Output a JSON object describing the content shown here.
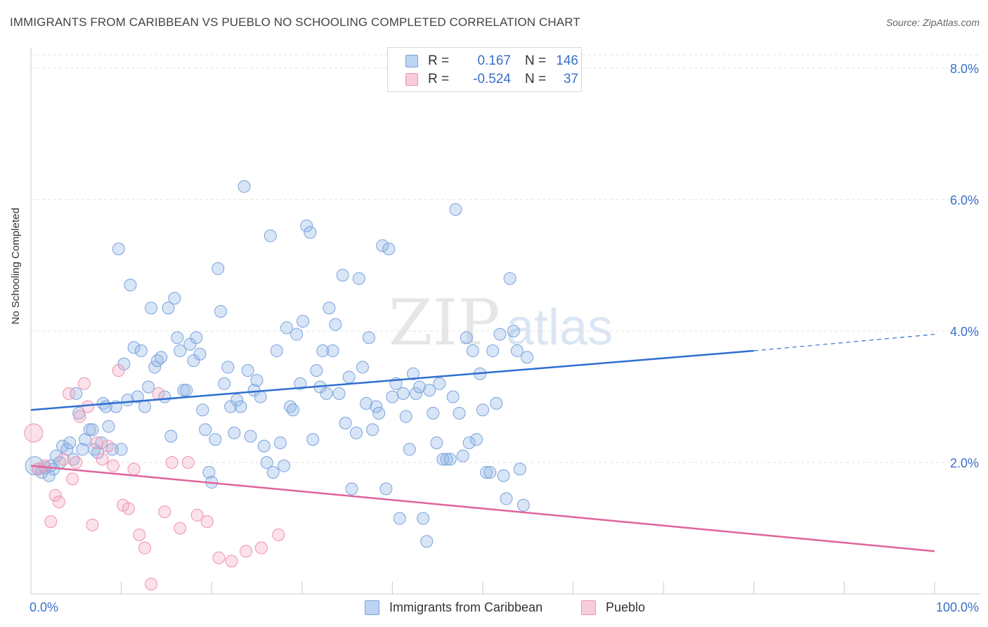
{
  "chart_data": {
    "type": "scatter",
    "title": "IMMIGRANTS FROM CARIBBEAN VS PUEBLO NO SCHOOLING COMPLETED CORRELATION CHART",
    "source": "Source: ZipAtlas.com",
    "ylabel": "No Schooling Completed",
    "xlim": [
      0,
      100
    ],
    "ylim": [
      0,
      8
    ],
    "x_tick_labels": [
      "0.0%",
      "100.0%"
    ],
    "y_ticks": [
      2,
      4,
      6,
      8
    ],
    "y_tick_labels": [
      "2.0%",
      "4.0%",
      "6.0%",
      "8.0%"
    ],
    "grid": "horizontal dashed",
    "watermark": "ZIPatlas",
    "legend": {
      "rows": [
        {
          "r_label": "R =",
          "r_value": "0.167",
          "n_label": "N =",
          "n_value": "146"
        },
        {
          "r_label": "R =",
          "r_value": "-0.524",
          "n_label": "N =",
          "n_value": "37"
        }
      ]
    },
    "series": [
      {
        "name": "Immigrants from Caribbean",
        "color": "#8fb4e6",
        "line_color": "#2f6fd0",
        "trend": {
          "x0": 0,
          "y0": 2.8,
          "x1": 80,
          "y1": 3.7,
          "x_ext": 100,
          "y_ext": 3.95
        },
        "points": [
          [
            0.4,
            1.95
          ],
          [
            0.8,
            1.9
          ],
          [
            1.2,
            1.85
          ],
          [
            1.6,
            1.92
          ],
          [
            2,
            1.8
          ],
          [
            2.2,
            1.95
          ],
          [
            2.5,
            1.9
          ],
          [
            2.8,
            2.1
          ],
          [
            3.2,
            2.0
          ],
          [
            3.5,
            2.25
          ],
          [
            4,
            2.2
          ],
          [
            4.3,
            2.3
          ],
          [
            4.7,
            2.05
          ],
          [
            5,
            3.05
          ],
          [
            5.3,
            2.75
          ],
          [
            5.7,
            2.2
          ],
          [
            6,
            2.35
          ],
          [
            6.5,
            2.5
          ],
          [
            6.8,
            2.5
          ],
          [
            7,
            2.2
          ],
          [
            7.4,
            2.15
          ],
          [
            7.8,
            2.3
          ],
          [
            8,
            2.9
          ],
          [
            8.3,
            2.85
          ],
          [
            8.6,
            2.55
          ],
          [
            9,
            2.2
          ],
          [
            9.4,
            2.85
          ],
          [
            9.7,
            5.25
          ],
          [
            10,
            2.2
          ],
          [
            10.3,
            3.5
          ],
          [
            10.7,
            2.95
          ],
          [
            11,
            4.7
          ],
          [
            11.4,
            3.75
          ],
          [
            11.8,
            3.0
          ],
          [
            12.2,
            3.7
          ],
          [
            12.6,
            2.85
          ],
          [
            13,
            3.15
          ],
          [
            13.3,
            4.35
          ],
          [
            13.7,
            3.45
          ],
          [
            14,
            3.55
          ],
          [
            14.4,
            3.6
          ],
          [
            14.8,
            3.0
          ],
          [
            15.2,
            4.35
          ],
          [
            15.5,
            2.4
          ],
          [
            15.9,
            4.5
          ],
          [
            16.2,
            3.9
          ],
          [
            16.5,
            3.7
          ],
          [
            16.9,
            3.1
          ],
          [
            17.2,
            3.1
          ],
          [
            17.6,
            3.8
          ],
          [
            18,
            3.55
          ],
          [
            18.3,
            3.9
          ],
          [
            18.7,
            3.65
          ],
          [
            19,
            2.8
          ],
          [
            19.3,
            2.5
          ],
          [
            19.7,
            1.85
          ],
          [
            20,
            1.7
          ],
          [
            20.4,
            2.35
          ],
          [
            20.7,
            4.95
          ],
          [
            21,
            4.3
          ],
          [
            21.4,
            3.2
          ],
          [
            21.8,
            3.45
          ],
          [
            22.1,
            2.85
          ],
          [
            22.5,
            2.45
          ],
          [
            22.8,
            2.95
          ],
          [
            23.2,
            2.85
          ],
          [
            23.6,
            6.2
          ],
          [
            24,
            3.4
          ],
          [
            24.3,
            2.4
          ],
          [
            24.7,
            3.1
          ],
          [
            25,
            3.25
          ],
          [
            25.4,
            3.0
          ],
          [
            25.8,
            2.25
          ],
          [
            26.1,
            2.0
          ],
          [
            26.5,
            5.45
          ],
          [
            26.8,
            1.85
          ],
          [
            27.2,
            3.7
          ],
          [
            27.6,
            2.3
          ],
          [
            28,
            1.95
          ],
          [
            28.3,
            4.05
          ],
          [
            28.7,
            2.85
          ],
          [
            29,
            2.8
          ],
          [
            29.4,
            3.95
          ],
          [
            29.8,
            3.2
          ],
          [
            30.1,
            4.15
          ],
          [
            30.5,
            5.6
          ],
          [
            30.9,
            5.5
          ],
          [
            31.2,
            2.35
          ],
          [
            31.6,
            3.4
          ],
          [
            32,
            3.15
          ],
          [
            32.3,
            3.7
          ],
          [
            32.7,
            3.05
          ],
          [
            33,
            4.35
          ],
          [
            33.4,
            3.7
          ],
          [
            33.7,
            4.1
          ],
          [
            34.1,
            3.05
          ],
          [
            34.5,
            4.85
          ],
          [
            34.8,
            2.6
          ],
          [
            35.2,
            3.3
          ],
          [
            35.5,
            1.6
          ],
          [
            36,
            2.45
          ],
          [
            36.3,
            4.8
          ],
          [
            36.7,
            3.45
          ],
          [
            37.1,
            2.9
          ],
          [
            37.4,
            3.9
          ],
          [
            37.8,
            2.5
          ],
          [
            38.2,
            2.85
          ],
          [
            38.5,
            2.75
          ],
          [
            38.9,
            5.3
          ],
          [
            39.3,
            1.6
          ],
          [
            39.6,
            5.25
          ],
          [
            40,
            3.0
          ],
          [
            40.4,
            3.2
          ],
          [
            40.8,
            1.15
          ],
          [
            41.2,
            3.05
          ],
          [
            41.5,
            2.7
          ],
          [
            41.9,
            2.2
          ],
          [
            42.3,
            3.35
          ],
          [
            42.6,
            3.05
          ],
          [
            43,
            3.15
          ],
          [
            43.4,
            1.15
          ],
          [
            43.8,
            0.8
          ],
          [
            44.1,
            3.1
          ],
          [
            44.5,
            2.75
          ],
          [
            44.9,
            2.3
          ],
          [
            45.2,
            3.2
          ],
          [
            45.6,
            2.05
          ],
          [
            46,
            2.05
          ],
          [
            46.4,
            2.05
          ],
          [
            46.7,
            3.0
          ],
          [
            47,
            5.85
          ],
          [
            47.4,
            2.75
          ],
          [
            47.8,
            2.1
          ],
          [
            48.2,
            3.9
          ],
          [
            48.5,
            2.3
          ],
          [
            48.9,
            3.7
          ],
          [
            49.3,
            2.35
          ],
          [
            49.7,
            3.35
          ],
          [
            50,
            2.8
          ],
          [
            50.4,
            1.85
          ],
          [
            50.8,
            1.85
          ],
          [
            51.1,
            3.7
          ],
          [
            51.5,
            2.9
          ],
          [
            51.9,
            3.95
          ],
          [
            52.3,
            1.8
          ],
          [
            52.6,
            1.45
          ],
          [
            53,
            4.8
          ],
          [
            53.4,
            4.0
          ],
          [
            53.8,
            3.7
          ],
          [
            54.1,
            1.9
          ],
          [
            54.5,
            1.35
          ],
          [
            54.9,
            3.6
          ]
        ]
      },
      {
        "name": "Pueblo",
        "color": "#f4a9c0",
        "line_color": "#e0649a",
        "trend": {
          "x0": 0,
          "y0": 1.95,
          "x1": 100,
          "y1": 0.65
        },
        "points": [
          [
            0.3,
            2.45
          ],
          [
            0.8,
            1.9
          ],
          [
            1.5,
            1.95
          ],
          [
            2.2,
            1.1
          ],
          [
            2.7,
            1.5
          ],
          [
            3.1,
            1.4
          ],
          [
            3.6,
            2.05
          ],
          [
            4.2,
            3.05
          ],
          [
            4.6,
            1.75
          ],
          [
            5,
            2.0
          ],
          [
            5.4,
            2.7
          ],
          [
            5.9,
            3.2
          ],
          [
            6.3,
            2.85
          ],
          [
            6.8,
            1.05
          ],
          [
            7.3,
            2.3
          ],
          [
            7.9,
            2.05
          ],
          [
            8.5,
            2.25
          ],
          [
            9.1,
            1.95
          ],
          [
            9.7,
            3.4
          ],
          [
            10.2,
            1.35
          ],
          [
            10.8,
            1.3
          ],
          [
            11.4,
            1.9
          ],
          [
            12,
            0.9
          ],
          [
            12.6,
            0.7
          ],
          [
            13.3,
            0.15
          ],
          [
            14.1,
            3.05
          ],
          [
            14.8,
            1.25
          ],
          [
            15.6,
            2.0
          ],
          [
            16.5,
            1.0
          ],
          [
            17.4,
            2.0
          ],
          [
            18.4,
            1.2
          ],
          [
            19.5,
            1.1
          ],
          [
            20.8,
            0.55
          ],
          [
            22.2,
            0.5
          ],
          [
            23.8,
            0.65
          ],
          [
            25.5,
            0.7
          ],
          [
            27.4,
            0.9
          ]
        ]
      }
    ]
  }
}
